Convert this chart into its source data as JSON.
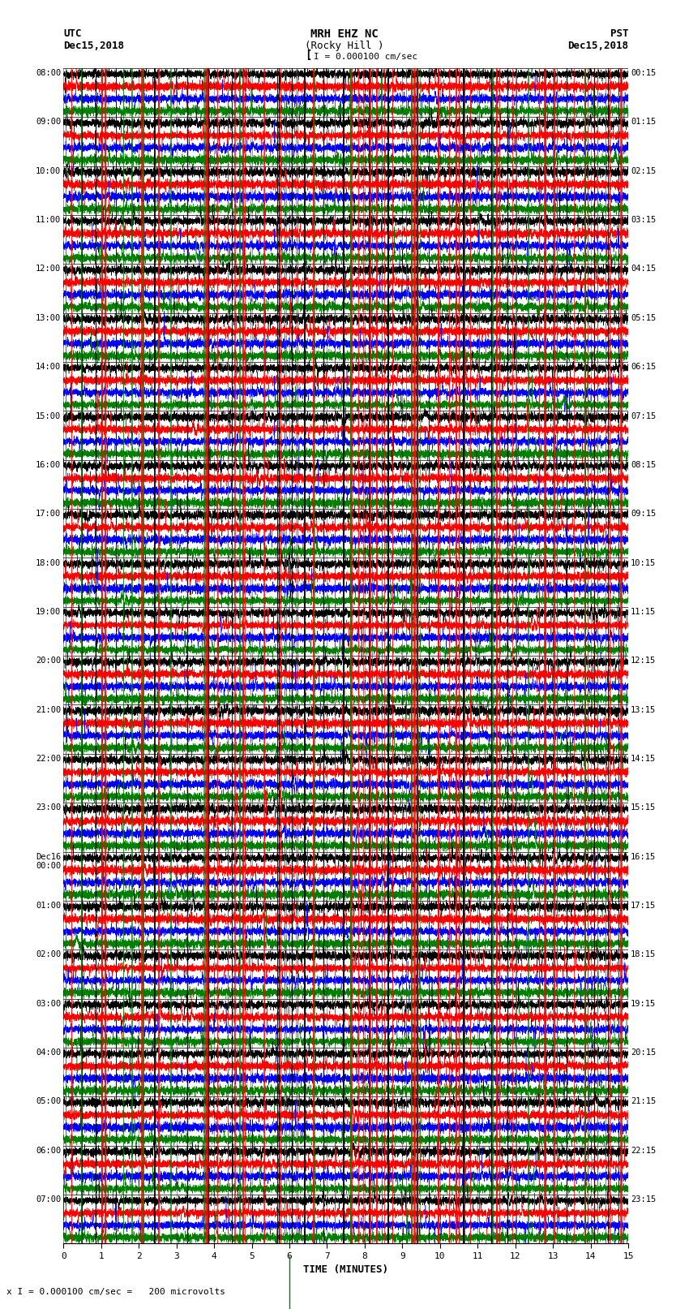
{
  "title_line1": "MRH EHZ NC",
  "title_line2": "(Rocky Hill )",
  "scale_label": "I = 0.000100 cm/sec",
  "bottom_label": "x I = 0.000100 cm/sec =   200 microvolts",
  "xlabel": "TIME (MINUTES)",
  "left_label_top": "UTC",
  "left_label_date": "Dec15,2018",
  "right_label_top": "PST",
  "right_label_date": "Dec15,2018",
  "left_times": [
    "08:00",
    "09:00",
    "10:00",
    "11:00",
    "12:00",
    "13:00",
    "14:00",
    "15:00",
    "16:00",
    "17:00",
    "18:00",
    "19:00",
    "20:00",
    "21:00",
    "22:00",
    "23:00",
    "Dec16\n00:00",
    "01:00",
    "02:00",
    "03:00",
    "04:00",
    "05:00",
    "06:00",
    "07:00"
  ],
  "right_times": [
    "00:15",
    "01:15",
    "02:15",
    "03:15",
    "04:15",
    "05:15",
    "06:15",
    "07:15",
    "08:15",
    "09:15",
    "10:15",
    "11:15",
    "12:15",
    "13:15",
    "14:15",
    "15:15",
    "16:15",
    "17:15",
    "18:15",
    "19:15",
    "20:15",
    "21:15",
    "22:15",
    "23:15"
  ],
  "n_rows": 24,
  "n_traces_per_row": 4,
  "trace_colors": [
    "black",
    "red",
    "blue",
    "green"
  ],
  "minutes_ticks": [
    0,
    1,
    2,
    3,
    4,
    5,
    6,
    7,
    8,
    9,
    10,
    11,
    12,
    13,
    14,
    15
  ],
  "x_min": 0,
  "x_max": 15,
  "fig_width": 8.5,
  "fig_height": 16.13,
  "bg_color": "white",
  "seed": 42,
  "vline_minute_color": "black",
  "vline_minute_lw": 0.5,
  "hline_color": "black",
  "hline_lw": 0.6
}
